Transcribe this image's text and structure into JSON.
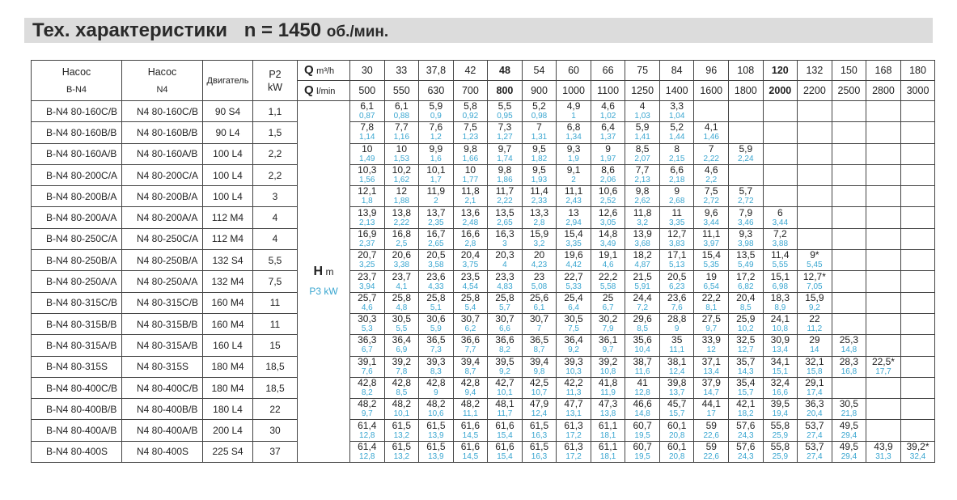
{
  "title": {
    "main": "Тех. характеристики",
    "n": "n = 1450",
    "unit": "об./мин."
  },
  "header": {
    "pump_bn4": [
      "Насос",
      "B-N4"
    ],
    "pump_n4": [
      "Насос",
      "N4"
    ],
    "motor": "Двигатель",
    "p2": [
      "P2",
      "kW"
    ],
    "q_m3h": {
      "symbol": "Q",
      "unit": "m³/h"
    },
    "q_lmin": {
      "symbol": "Q",
      "unit": "l/min"
    },
    "h_label": {
      "symbol": "H",
      "unit": "m"
    },
    "p3_label": "P3 kW",
    "q_m3h_values": [
      "30",
      "33",
      "37,8",
      "42",
      "48",
      "54",
      "60",
      "66",
      "75",
      "84",
      "96",
      "108",
      "120",
      "132",
      "150",
      "168",
      "180"
    ],
    "q_lmin_values": [
      "500",
      "550",
      "630",
      "700",
      "800",
      "900",
      "1000",
      "1100",
      "1250",
      "1400",
      "1600",
      "1800",
      "2000",
      "2200",
      "2500",
      "2800",
      "3000"
    ],
    "bold_columns": [
      4,
      12
    ]
  },
  "colors": {
    "power": "#3aa6d0",
    "title_bar": "#dcdcdc"
  },
  "rows": [
    {
      "bn4": "B-N4 80-160C/B",
      "n4": "N4 80-160C/B",
      "motor": "90 S4",
      "p2": "1,1",
      "h": [
        "6,1",
        "6,1",
        "5,9",
        "5,8",
        "5,5",
        "5,2",
        "4,9",
        "4,6",
        "4",
        "3,3"
      ],
      "p": [
        "0,87",
        "0,88",
        "0,9",
        "0,92",
        "0,95",
        "0,98",
        "1",
        "1,02",
        "1,03",
        "1,04"
      ]
    },
    {
      "bn4": "B-N4 80-160B/B",
      "n4": "N4 80-160B/B",
      "motor": "90 L4",
      "p2": "1,5",
      "h": [
        "7,8",
        "7,7",
        "7,6",
        "7,5",
        "7,3",
        "7",
        "6,8",
        "6,4",
        "5,9",
        "5,2",
        "4,1"
      ],
      "p": [
        "1,14",
        "1,16",
        "1,2",
        "1,23",
        "1,27",
        "1,31",
        "1,34",
        "1,37",
        "1,41",
        "1,44",
        "1,46"
      ]
    },
    {
      "bn4": "B-N4 80-160A/B",
      "n4": "N4 80-160A/B",
      "motor": "100 L4",
      "p2": "2,2",
      "h": [
        "10",
        "10",
        "9,9",
        "9,8",
        "9,7",
        "9,5",
        "9,3",
        "9",
        "8,5",
        "8",
        "7",
        "5,9"
      ],
      "p": [
        "1,49",
        "1,53",
        "1,6",
        "1,66",
        "1,74",
        "1,82",
        "1,9",
        "1,97",
        "2,07",
        "2,15",
        "2,22",
        "2,24"
      ]
    },
    {
      "bn4": "B-N4 80-200C/A",
      "n4": "N4 80-200C/A",
      "motor": "100 L4",
      "p2": "2,2",
      "h": [
        "10,3",
        "10,2",
        "10,1",
        "10",
        "9,8",
        "9,5",
        "9,1",
        "8,6",
        "7,7",
        "6,6",
        "4,6"
      ],
      "p": [
        "1,56",
        "1,62",
        "1,7",
        "1,77",
        "1,86",
        "1,93",
        "2",
        "2,06",
        "2,13",
        "2,18",
        "2,2"
      ]
    },
    {
      "bn4": "B-N4 80-200B/A",
      "n4": "N4 80-200B/A",
      "motor": "100 L4",
      "p2": "3",
      "h": [
        "12,1",
        "12",
        "11,9",
        "11,8",
        "11,7",
        "11,4",
        "11,1",
        "10,6",
        "9,8",
        "9",
        "7,5",
        "5,7"
      ],
      "p": [
        "1,8",
        "1,88",
        "2",
        "2,1",
        "2,22",
        "2,33",
        "2,43",
        "2,52",
        "2,62",
        "2,68",
        "2,72",
        "2,72"
      ]
    },
    {
      "bn4": "B-N4 80-200A/A",
      "n4": "N4 80-200A/A",
      "motor": "112 M4",
      "p2": "4",
      "h": [
        "13,9",
        "13,8",
        "13,7",
        "13,6",
        "13,5",
        "13,3",
        "13",
        "12,6",
        "11,8",
        "11",
        "9,6",
        "7,9",
        "6"
      ],
      "p": [
        "2,13",
        "2,22",
        "2,35",
        "2,48",
        "2,65",
        "2,8",
        "2,94",
        "3,05",
        "3,2",
        "3,35",
        "3,44",
        "3,46",
        "3,44"
      ]
    },
    {
      "bn4": "B-N4 80-250C/A",
      "n4": "N4 80-250C/A",
      "motor": "112 M4",
      "p2": "4",
      "h": [
        "16,9",
        "16,8",
        "16,7",
        "16,6",
        "16,3",
        "15,9",
        "15,4",
        "14,8",
        "13,9",
        "12,7",
        "11,1",
        "9,3",
        "7,2"
      ],
      "p": [
        "2,37",
        "2,5",
        "2,65",
        "2,8",
        "3",
        "3,2",
        "3,35",
        "3,49",
        "3,68",
        "3,83",
        "3,97",
        "3,98",
        "3,88"
      ]
    },
    {
      "bn4": "B-N4 80-250B/A",
      "n4": "N4 80-250B/A",
      "motor": "132 S4",
      "p2": "5,5",
      "h": [
        "20,7",
        "20,6",
        "20,5",
        "20,4",
        "20,3",
        "20",
        "19,6",
        "19,1",
        "18,2",
        "17,1",
        "15,4",
        "13,5",
        "11,4",
        "9*"
      ],
      "p": [
        "3,25",
        "3,38",
        "3,58",
        "3,75",
        "4",
        "4,23",
        "4,42",
        "4,6",
        "4,87",
        "5,13",
        "5,35",
        "5,49",
        "5,55",
        "5,45"
      ]
    },
    {
      "bn4": "B-N4 80-250A/A",
      "n4": "N4 80-250A/A",
      "motor": "132 M4",
      "p2": "7,5",
      "h": [
        "23,7",
        "23,7",
        "23,6",
        "23,5",
        "23,3",
        "23",
        "22,7",
        "22,2",
        "21,5",
        "20,5",
        "19",
        "17,2",
        "15,1",
        "12,7*"
      ],
      "p": [
        "3,94",
        "4,1",
        "4,33",
        "4,54",
        "4,83",
        "5,08",
        "5,33",
        "5,58",
        "5,91",
        "6,23",
        "6,54",
        "6,82",
        "6,98",
        "7,05"
      ]
    },
    {
      "bn4": "B-N4 80-315C/B",
      "n4": "N4 80-315C/B",
      "motor": "160 M4",
      "p2": "11",
      "h": [
        "25,7",
        "25,8",
        "25,8",
        "25,8",
        "25,8",
        "25,6",
        "25,4",
        "25",
        "24,4",
        "23,6",
        "22,2",
        "20,4",
        "18,3",
        "15,9"
      ],
      "p": [
        "4,6",
        "4,8",
        "5,1",
        "5,4",
        "5,7",
        "6,1",
        "6,4",
        "6,7",
        "7,2",
        "7,6",
        "8,1",
        "8,5",
        "8,9",
        "9,2"
      ]
    },
    {
      "bn4": "B-N4 80-315B/B",
      "n4": "N4 80-315B/B",
      "motor": "160 M4",
      "p2": "11",
      "h": [
        "30,3",
        "30,5",
        "30,6",
        "30,7",
        "30,7",
        "30,7",
        "30,5",
        "30,2",
        "29,6",
        "28,8",
        "27,5",
        "25,9",
        "24,1",
        "22"
      ],
      "p": [
        "5,3",
        "5,5",
        "5,9",
        "6,2",
        "6,6",
        "7",
        "7,5",
        "7,9",
        "8,5",
        "9",
        "9,7",
        "10,2",
        "10,8",
        "11,2"
      ]
    },
    {
      "bn4": "B-N4 80-315A/B",
      "n4": "N4 80-315A/B",
      "motor": "160 L4",
      "p2": "15",
      "h": [
        "36,3",
        "36,4",
        "36,5",
        "36,6",
        "36,6",
        "36,5",
        "36,4",
        "36,1",
        "35,6",
        "35",
        "33,9",
        "32,5",
        "30,9",
        "29",
        "25,3"
      ],
      "p": [
        "6,7",
        "6,9",
        "7,3",
        "7,7",
        "8,2",
        "8,7",
        "9,2",
        "9,7",
        "10,4",
        "11,1",
        "12",
        "12,7",
        "13,4",
        "14",
        "14,8"
      ]
    },
    {
      "bn4": "B-N4 80-315S",
      "n4": "N4 80-315S",
      "motor": "180 M4",
      "p2": "18,5",
      "h": [
        "39,1",
        "39,2",
        "39,3",
        "39,4",
        "39,5",
        "39,4",
        "39,3",
        "39,2",
        "38,7",
        "38,1",
        "37,1",
        "35,7",
        "34,1",
        "32,1",
        "28,3",
        "22,5*"
      ],
      "p": [
        "7,6",
        "7,8",
        "8,3",
        "8,7",
        "9,2",
        "9,8",
        "10,3",
        "10,8",
        "11,6",
        "12,4",
        "13,4",
        "14,3",
        "15,1",
        "15,8",
        "16,8",
        "17,7"
      ]
    },
    {
      "bn4": "B-N4 80-400C/B",
      "n4": "N4 80-400C/B",
      "motor": "180 M4",
      "p2": "18,5",
      "h": [
        "42,8",
        "42,8",
        "42,8",
        "42,8",
        "42,7",
        "42,5",
        "42,2",
        "41,8",
        "41",
        "39,8",
        "37,9",
        "35,4",
        "32,4",
        "29,1"
      ],
      "p": [
        "8,2",
        "8,5",
        "9",
        "9,4",
        "10,1",
        "10,7",
        "11,3",
        "11,9",
        "12,8",
        "13,7",
        "14,7",
        "15,7",
        "16,6",
        "17,4"
      ]
    },
    {
      "bn4": "B-N4 80-400B/B",
      "n4": "N4 80-400B/B",
      "motor": "180 L4",
      "p2": "22",
      "h": [
        "48,2",
        "48,2",
        "48,2",
        "48,2",
        "48,1",
        "47,9",
        "47,7",
        "47,3",
        "46,6",
        "45,7",
        "44,1",
        "42,1",
        "39,5",
        "36,3",
        "30,5"
      ],
      "p": [
        "9,7",
        "10,1",
        "10,6",
        "11,1",
        "11,7",
        "12,4",
        "13,1",
        "13,8",
        "14,8",
        "15,7",
        "17",
        "18,2",
        "19,4",
        "20,4",
        "21,8"
      ]
    },
    {
      "bn4": "B-N4 80-400A/B",
      "n4": "N4 80-400A/B",
      "motor": "200 L4",
      "p2": "30",
      "h": [
        "61,4",
        "61,5",
        "61,5",
        "61,6",
        "61,6",
        "61,5",
        "61,3",
        "61,1",
        "60,7",
        "60,1",
        "59",
        "57,6",
        "55,8",
        "53,7",
        "49,5"
      ],
      "p": [
        "12,8",
        "13,2",
        "13,9",
        "14,5",
        "15,4",
        "16,3",
        "17,2",
        "18,1",
        "19,5",
        "20,8",
        "22,6",
        "24,3",
        "25,9",
        "27,4",
        "29,4"
      ]
    },
    {
      "bn4": "B-N4 80-400S",
      "n4": "N4 80-400S",
      "motor": "225 S4",
      "p2": "37",
      "h": [
        "61,4",
        "61,5",
        "61,5",
        "61,6",
        "61,6",
        "61,5",
        "61,3",
        "61,1",
        "60,7",
        "60,1",
        "59",
        "57,6",
        "55,8",
        "53,7",
        "49,5",
        "43,9",
        "39,2*"
      ],
      "p": [
        "12,8",
        "13,2",
        "13,9",
        "14,5",
        "15,4",
        "16,3",
        "17,2",
        "18,1",
        "19,5",
        "20,8",
        "22,6",
        "24,3",
        "25,9",
        "27,4",
        "29,4",
        "31,3",
        "32,4"
      ]
    }
  ]
}
